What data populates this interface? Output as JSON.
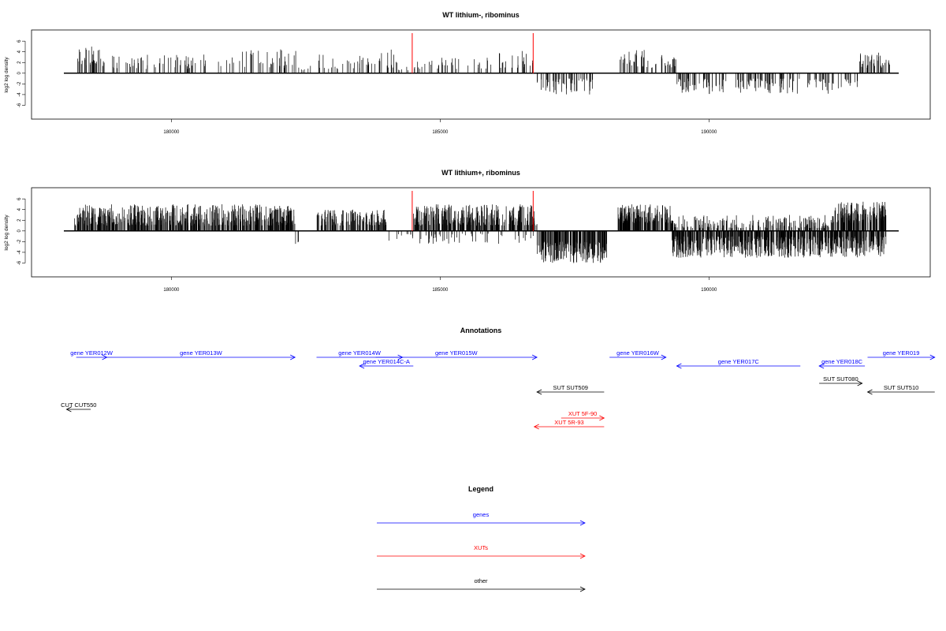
{
  "colors": {
    "genes": "#0000ff",
    "xuts": "#ff0000",
    "other": "#000000",
    "marker": "#ff0000"
  },
  "chart_data": [
    {
      "type": "bar",
      "title": "WT lithium-, ribominus",
      "ylabel": "log2 log density",
      "xlim": [
        178000,
        193500
      ],
      "ylim": [
        -8,
        7.5
      ],
      "xticks": [
        180000,
        185000,
        190000
      ],
      "xtick_labels": [
        "180000",
        "185000",
        "190000"
      ],
      "yticks": [
        6,
        4,
        2,
        0,
        -2,
        -4,
        -6
      ],
      "ytick_labels": [
        "6",
        "4",
        "2",
        "0",
        "-2",
        "-4",
        "-6"
      ],
      "marker_lines": [
        184480,
        186730
      ],
      "profile": [
        {
          "from": 178200,
          "to": 178700,
          "sign": 1,
          "hi": 5.0,
          "lo": 1.5,
          "density": 18
        },
        {
          "from": 178700,
          "to": 181100,
          "sign": 1,
          "hi": 3.5,
          "lo": 0.8,
          "density": 8
        },
        {
          "from": 181100,
          "to": 182400,
          "sign": 1,
          "hi": 4.5,
          "lo": 1.0,
          "density": 8
        },
        {
          "from": 182400,
          "to": 182700,
          "sign": 1,
          "hi": 1.5,
          "lo": 0.5,
          "density": 5
        },
        {
          "from": 182700,
          "to": 183900,
          "sign": 1,
          "hi": 3.5,
          "lo": 0.8,
          "density": 8
        },
        {
          "from": 183900,
          "to": 184200,
          "sign": 1,
          "hi": 4.5,
          "lo": 1.0,
          "density": 10
        },
        {
          "from": 184200,
          "to": 184500,
          "sign": 1,
          "hi": 2.0,
          "lo": 0.5,
          "density": 5
        },
        {
          "from": 184500,
          "to": 186000,
          "sign": 1,
          "hi": 3.0,
          "lo": 0.8,
          "density": 7
        },
        {
          "from": 186000,
          "to": 186750,
          "sign": 1,
          "hi": 4.5,
          "lo": 1.0,
          "density": 9
        },
        {
          "from": 186800,
          "to": 187900,
          "sign": -1,
          "hi": 4.0,
          "lo": 1.0,
          "density": 14
        },
        {
          "from": 188300,
          "to": 188800,
          "sign": 1,
          "hi": 4.5,
          "lo": 1.2,
          "density": 16
        },
        {
          "from": 188800,
          "to": 189400,
          "sign": 1,
          "hi": 3.5,
          "lo": 1.0,
          "density": 12
        },
        {
          "from": 189400,
          "to": 192300,
          "sign": -1,
          "hi": 4.0,
          "lo": 1.0,
          "density": 14
        },
        {
          "from": 192300,
          "to": 192800,
          "sign": -1,
          "hi": 3.0,
          "lo": 1.0,
          "density": 8
        },
        {
          "from": 192800,
          "to": 193400,
          "sign": 1,
          "hi": 4.0,
          "lo": 1.0,
          "density": 18
        }
      ]
    },
    {
      "type": "bar",
      "title": "WT lithium+, ribominus",
      "ylabel": "log2 log density",
      "xlim": [
        178000,
        193500
      ],
      "ylim": [
        -8,
        7.5
      ],
      "xticks": [
        180000,
        185000,
        190000
      ],
      "xtick_labels": [
        "180000",
        "185000",
        "190000"
      ],
      "yticks": [
        6,
        4,
        2,
        0,
        -2,
        -4,
        -6
      ],
      "ytick_labels": [
        "6",
        "4",
        "2",
        "0",
        "-2",
        "-4",
        "-6"
      ],
      "marker_lines": [
        184480,
        186730
      ],
      "profile": [
        {
          "from": 178200,
          "to": 182300,
          "sign": 1,
          "hi": 5.0,
          "lo": 1.0,
          "density": 40
        },
        {
          "from": 182300,
          "to": 182400,
          "sign": -1,
          "hi": 2.5,
          "lo": 2.0,
          "density": 10
        },
        {
          "from": 182700,
          "to": 184000,
          "sign": 1,
          "hi": 4.0,
          "lo": 1.0,
          "density": 30
        },
        {
          "from": 184000,
          "to": 184500,
          "sign": -1,
          "hi": 2.5,
          "lo": 0.5,
          "density": 6
        },
        {
          "from": 184500,
          "to": 186800,
          "sign": 1,
          "hi": 5.0,
          "lo": 1.0,
          "density": 40
        },
        {
          "from": 184500,
          "to": 186800,
          "sign": -1,
          "hi": 2.5,
          "lo": 0.5,
          "density": 6
        },
        {
          "from": 186800,
          "to": 188100,
          "sign": -1,
          "hi": 6.0,
          "lo": 2.0,
          "density": 45
        },
        {
          "from": 188300,
          "to": 189300,
          "sign": 1,
          "hi": 5.0,
          "lo": 1.5,
          "density": 45
        },
        {
          "from": 189300,
          "to": 192300,
          "sign": 1,
          "hi": 3.0,
          "lo": 0.5,
          "density": 20
        },
        {
          "from": 189300,
          "to": 193300,
          "sign": -1,
          "hi": 5.0,
          "lo": 1.0,
          "density": 45
        },
        {
          "from": 192300,
          "to": 193300,
          "sign": 1,
          "hi": 5.5,
          "lo": 1.5,
          "density": 45
        }
      ]
    }
  ],
  "annotations": {
    "title": "Annotations",
    "items": [
      {
        "label": "gene YER012W",
        "kind": "genes",
        "start": 178230,
        "end": 178800,
        "dir": "right",
        "row": 0
      },
      {
        "label": "gene YER013W",
        "kind": "genes",
        "start": 178800,
        "end": 182300,
        "dir": "right",
        "row": 0
      },
      {
        "label": "gene YER014W",
        "kind": "genes",
        "start": 182700,
        "end": 184300,
        "dir": "right",
        "row": 0
      },
      {
        "label": "gene YER014C-A",
        "kind": "genes",
        "start": 183500,
        "end": 184500,
        "dir": "left",
        "row": 1
      },
      {
        "label": "gene YER015W",
        "kind": "genes",
        "start": 183800,
        "end": 186800,
        "dir": "right",
        "row": 0
      },
      {
        "label": "gene YER016W",
        "kind": "genes",
        "start": 188150,
        "end": 189200,
        "dir": "right",
        "row": 0
      },
      {
        "label": "gene YER017C",
        "kind": "genes",
        "start": 189400,
        "end": 191700,
        "dir": "left",
        "row": 1
      },
      {
        "label": "gene YER018C",
        "kind": "genes",
        "start": 192050,
        "end": 192900,
        "dir": "left",
        "row": 1
      },
      {
        "label": "gene YER019",
        "kind": "genes",
        "start": 192950,
        "end": 194200,
        "dir": "right",
        "row": 0
      },
      {
        "label": "SUT SUT509",
        "kind": "other",
        "start": 186800,
        "end": 188050,
        "dir": "left",
        "row": 4
      },
      {
        "label": "SUT SUT080",
        "kind": "other",
        "start": 192050,
        "end": 192850,
        "dir": "right",
        "row": 3
      },
      {
        "label": "SUT SUT510",
        "kind": "other",
        "start": 192950,
        "end": 194200,
        "dir": "left",
        "row": 4
      },
      {
        "label": "CUT CUT550",
        "kind": "other",
        "start": 178050,
        "end": 178500,
        "dir": "left",
        "row": 6
      },
      {
        "label": "XUT 5F-90",
        "kind": "xuts",
        "start": 187250,
        "end": 188050,
        "dir": "right",
        "row": 7
      },
      {
        "label": "XUT 5R-93",
        "kind": "xuts",
        "start": 186750,
        "end": 188050,
        "dir": "left",
        "row": 8
      }
    ]
  },
  "legend": {
    "title": "Legend",
    "items": [
      {
        "label": "genes",
        "kind": "genes"
      },
      {
        "label": "XUTs",
        "kind": "xuts"
      },
      {
        "label": "other",
        "kind": "other"
      }
    ]
  }
}
